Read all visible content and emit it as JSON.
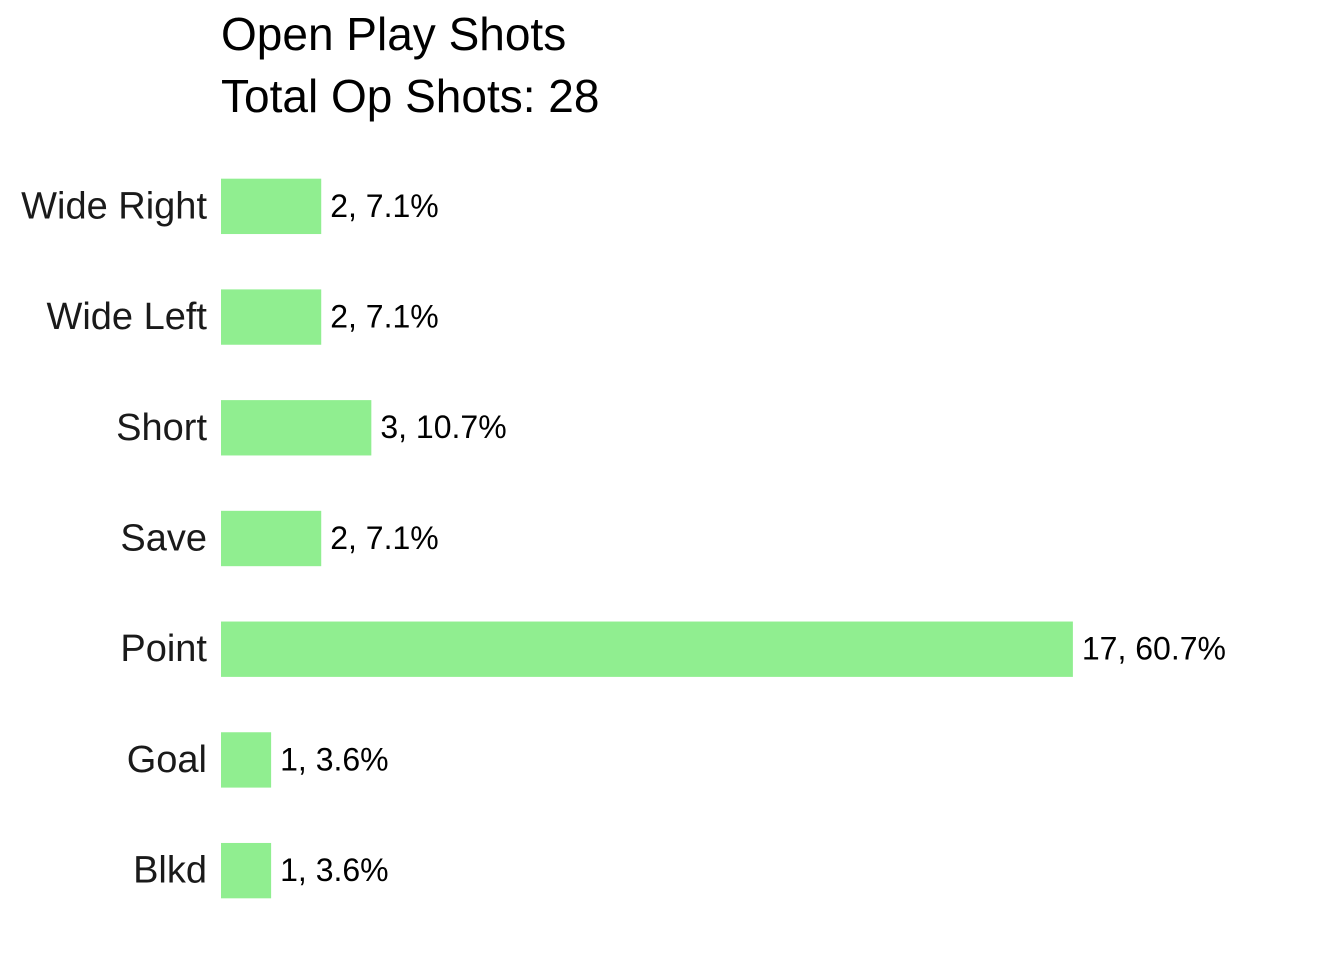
{
  "chart_data": {
    "type": "bar",
    "orientation": "horizontal",
    "title": "Open Play Shots",
    "subtitle": "Total Op Shots: 28",
    "categories": [
      "Wide Right",
      "Wide Left",
      "Short",
      "Save",
      "Point",
      "Goal",
      "Blkd"
    ],
    "values": [
      2,
      2,
      3,
      2,
      17,
      1,
      1
    ],
    "value_labels": [
      "2, 7.1%",
      "2, 7.1%",
      "3, 10.7%",
      "2, 7.1%",
      "17, 60.7%",
      "1, 3.6%",
      "1, 3.6%"
    ],
    "color": "#90ee90",
    "xlim": [
      0,
      18
    ]
  }
}
